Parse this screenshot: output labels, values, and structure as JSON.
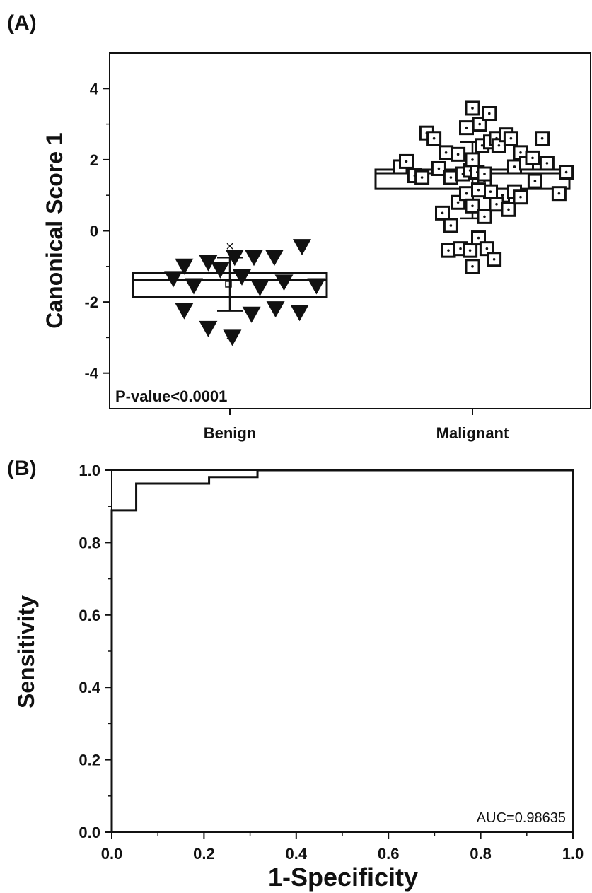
{
  "chart_data": [
    {
      "panel_label": "(A)",
      "type": "scatter",
      "subtype": "box-scatter",
      "ylabel": "Canonical Score 1",
      "ylim": [
        -5,
        5
      ],
      "yticks": [
        "4",
        "2",
        "0",
        "-2",
        "-4"
      ],
      "ytick_values": [
        4,
        2,
        0,
        -2,
        -4
      ],
      "categories": [
        "Benign",
        "Malignant"
      ],
      "annotation": "P-value<0.0001",
      "series": [
        {
          "category": "Benign",
          "marker": "filled-triangle-down",
          "points": [
            [
              -0.47,
              -1.35
            ],
            [
              -0.38,
              -1.0
            ],
            [
              -0.3,
              -1.55
            ],
            [
              -0.38,
              -2.25
            ],
            [
              -0.18,
              -0.9
            ],
            [
              -0.18,
              -2.75
            ],
            [
              -0.08,
              -1.1
            ],
            [
              0.04,
              -0.75
            ],
            [
              0.02,
              -3.0
            ],
            [
              0.1,
              -1.3
            ],
            [
              0.18,
              -2.35
            ],
            [
              0.2,
              -0.75
            ],
            [
              0.25,
              -1.6
            ],
            [
              0.37,
              -0.75
            ],
            [
              0.38,
              -2.2
            ],
            [
              0.45,
              -1.45
            ],
            [
              0.58,
              -2.3
            ],
            [
              0.6,
              -0.45
            ],
            [
              0.72,
              -1.55
            ]
          ],
          "box": {
            "q1": -1.85,
            "median": -1.38,
            "mean": -1.5,
            "q3": -1.18
          },
          "whisker": [
            -2.25,
            -0.75
          ],
          "extremes": [
            -0.43,
            -2.95
          ]
        },
        {
          "category": "Malignant",
          "marker": "square-dot",
          "points": [
            [
              -0.6,
              1.8
            ],
            [
              -0.55,
              1.95
            ],
            [
              -0.48,
              1.55
            ],
            [
              -0.42,
              1.5
            ],
            [
              -0.38,
              2.75
            ],
            [
              -0.32,
              2.6
            ],
            [
              -0.28,
              1.75
            ],
            [
              -0.22,
              2.2
            ],
            [
              -0.18,
              1.5
            ],
            [
              -0.12,
              2.15
            ],
            [
              -0.08,
              1.6
            ],
            [
              -0.05,
              2.9
            ],
            [
              -0.02,
              1.7
            ],
            [
              0.0,
              2.0
            ],
            [
              0.04,
              1.65
            ],
            [
              0.06,
              3.0
            ],
            [
              0.08,
              2.4
            ],
            [
              0.1,
              1.4
            ],
            [
              0.0,
              3.45
            ],
            [
              0.14,
              3.3
            ],
            [
              0.15,
              2.5
            ],
            [
              0.2,
              2.6
            ],
            [
              0.22,
              2.4
            ],
            [
              0.25,
              1.0
            ],
            [
              0.28,
              2.7
            ],
            [
              0.32,
              2.6
            ],
            [
              0.35,
              1.8
            ],
            [
              0.4,
              2.2
            ],
            [
              0.45,
              1.9
            ],
            [
              0.5,
              2.05
            ],
            [
              0.52,
              1.4
            ],
            [
              0.58,
              2.6
            ],
            [
              0.62,
              1.9
            ],
            [
              0.72,
              1.05
            ],
            [
              0.78,
              1.65
            ],
            [
              -0.25,
              0.5
            ],
            [
              -0.18,
              0.15
            ],
            [
              -0.12,
              0.8
            ],
            [
              -0.05,
              1.05
            ],
            [
              0.0,
              0.7
            ],
            [
              0.1,
              0.4
            ],
            [
              0.15,
              1.1
            ],
            [
              0.2,
              0.75
            ],
            [
              0.3,
              0.6
            ],
            [
              0.35,
              1.1
            ],
            [
              0.4,
              0.95
            ],
            [
              0.05,
              1.15
            ],
            [
              -0.2,
              -0.55
            ],
            [
              -0.1,
              -0.5
            ],
            [
              -0.02,
              -0.55
            ],
            [
              0.05,
              -0.2
            ],
            [
              0.12,
              -0.5
            ],
            [
              0.18,
              -0.8
            ],
            [
              0.0,
              -1.0
            ],
            [
              0.1,
              1.6
            ]
          ],
          "box": {
            "q1": 1.18,
            "median": 1.62,
            "mean": 1.52,
            "q3": 1.72
          },
          "whisker": [
            0.35,
            2.5
          ],
          "extremes": [
            3.45,
            -1.02
          ]
        }
      ]
    },
    {
      "panel_label": "(B)",
      "type": "line",
      "subtype": "roc",
      "xlabel": "1-Specificity",
      "ylabel": "Sensitivity",
      "xlim": [
        0,
        1
      ],
      "ylim": [
        0,
        1
      ],
      "xticks": [
        "0.0",
        "0.2",
        "0.4",
        "0.6",
        "0.8",
        "1.0"
      ],
      "yticks": [
        "1.0",
        "0.8",
        "0.6",
        "0.4",
        "0.2",
        "0.0"
      ],
      "annotation": "AUC=0.98635",
      "x": [
        0.0,
        0.0,
        0.053,
        0.053,
        0.211,
        0.211,
        0.316,
        0.316,
        1.0
      ],
      "y": [
        0.0,
        0.889,
        0.889,
        0.963,
        0.963,
        0.981,
        0.981,
        1.0,
        1.0
      ]
    }
  ]
}
